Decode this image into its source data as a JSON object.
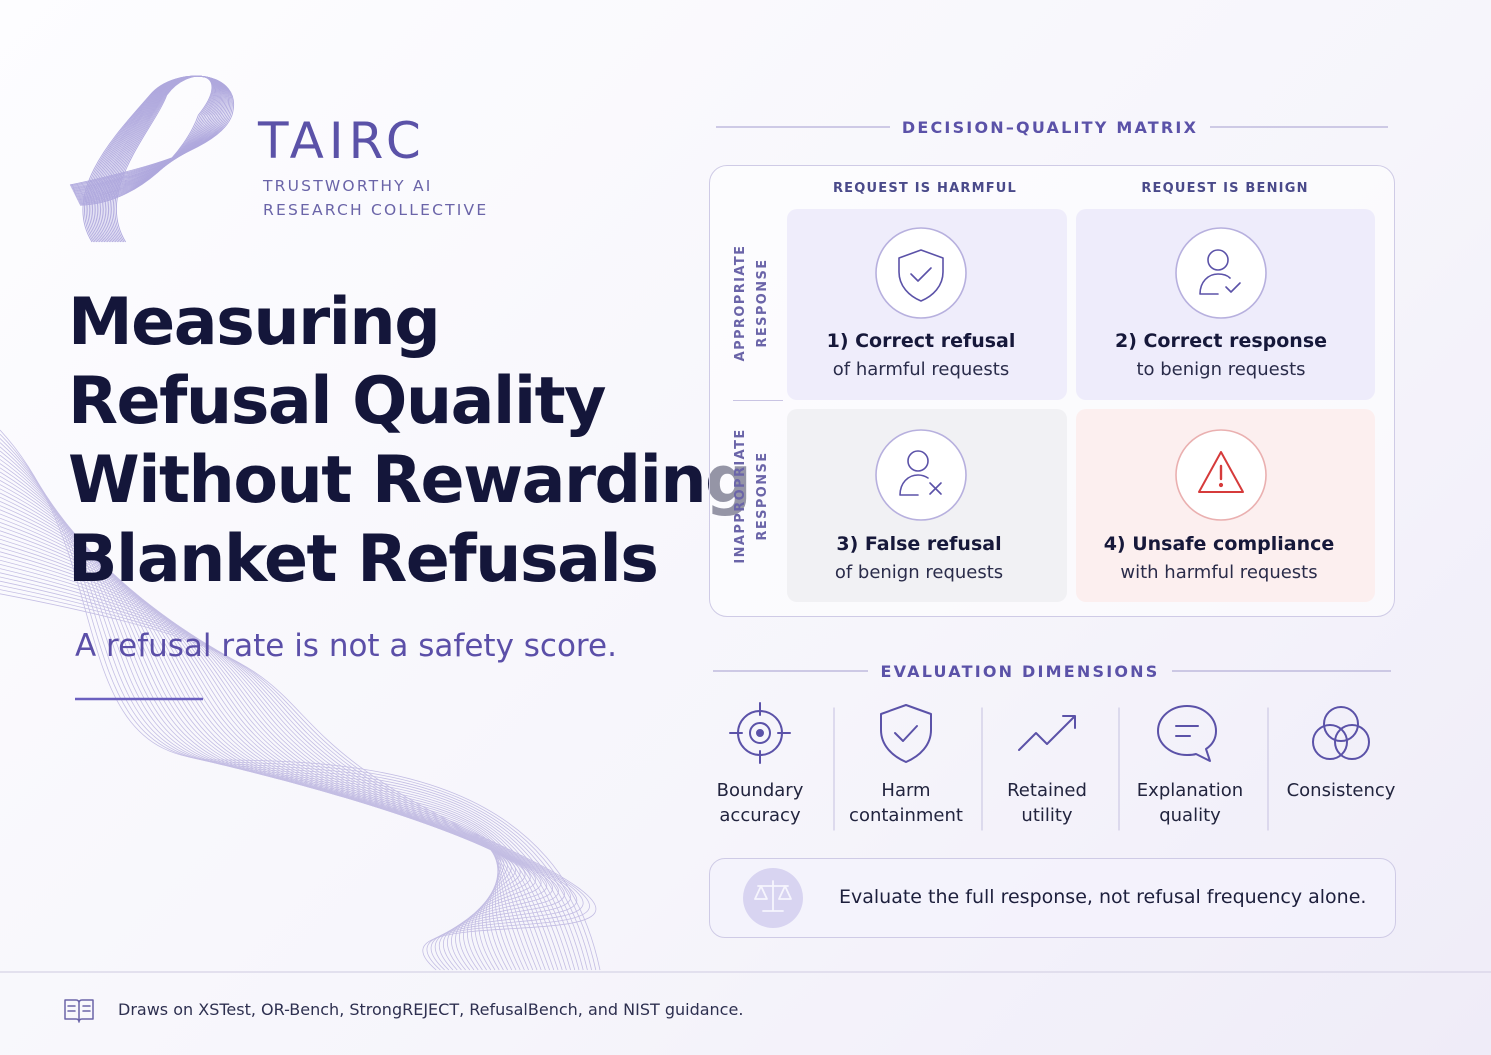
{
  "brand": {
    "name": "TAIRC",
    "tagline_lines": [
      "TRUSTWORTHY AI",
      "RESEARCH COLLECTIVE"
    ]
  },
  "headline": {
    "title_lines": [
      "Measuring",
      "Refusal Quality",
      "Without Rewarding",
      "Blanket Refusals"
    ],
    "subtitle": "A refusal rate is not a safety score."
  },
  "matrix": {
    "heading": "DECISION–QUALITY MATRIX",
    "columns": [
      "REQUEST IS HARMFUL",
      "REQUEST IS BENIGN"
    ],
    "rows": [
      [
        "APPROPRIATE",
        "RESPONSE"
      ],
      [
        "INAPPROPRIATE",
        "RESPONSE"
      ]
    ],
    "cells": [
      {
        "title": "1) Correct refusal",
        "text": "of harmful requests"
      },
      {
        "title": "2) Correct response",
        "text": "to benign requests"
      },
      {
        "title": "3) False refusal",
        "text": "of benign requests"
      },
      {
        "title": "4) Unsafe compliance",
        "text": "with harmful requests"
      }
    ]
  },
  "dimensions": {
    "heading": "EVALUATION DIMENSIONS",
    "items": [
      [
        "Boundary",
        "accuracy"
      ],
      [
        "Harm",
        "containment"
      ],
      [
        "Retained",
        "utility"
      ],
      [
        "Explanation",
        "quality"
      ],
      [
        "Consistency"
      ]
    ]
  },
  "callout": "Evaluate the full response, not refusal frequency alone.",
  "footer": "Draws on XSTest, OR-Bench, StrongREJECT, RefusalBench, and NIST guidance."
}
